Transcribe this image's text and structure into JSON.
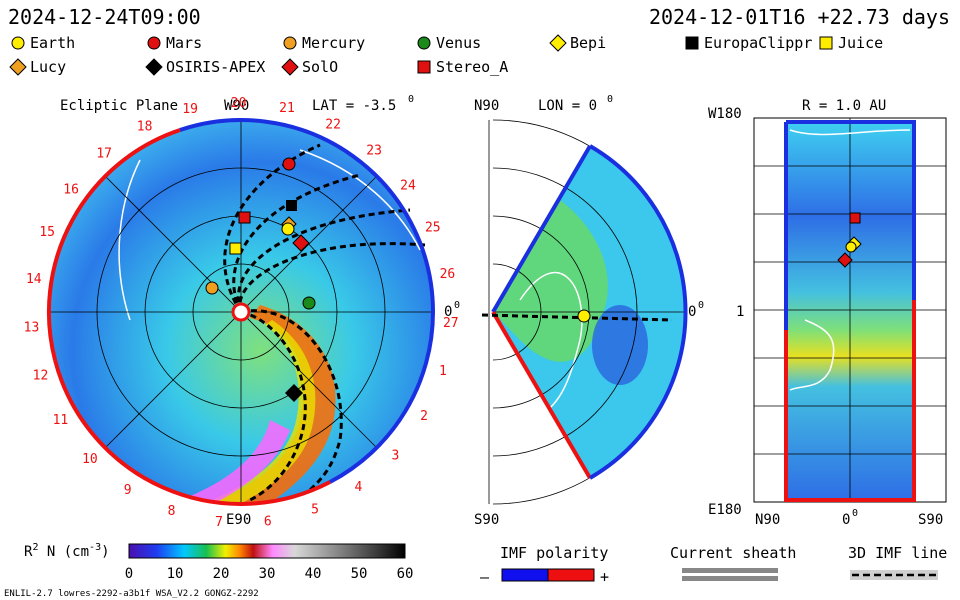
{
  "header": {
    "date_left": "2024-12-24T09:00",
    "date_right": "2024-12-01T16  +22.73 days"
  },
  "legend": [
    {
      "label": "Earth",
      "shape": "circle",
      "color": "#ffee00"
    },
    {
      "label": "Mars",
      "shape": "circle",
      "color": "#e01010"
    },
    {
      "label": "Mercury",
      "shape": "circle",
      "color": "#f0a020"
    },
    {
      "label": "Venus",
      "shape": "circle",
      "color": "#1a8a1a"
    },
    {
      "label": "Bepi",
      "shape": "diamond",
      "color": "#ffee00"
    },
    {
      "label": "EuropaClippr",
      "shape": "square",
      "color": "#000000"
    },
    {
      "label": "Juice",
      "shape": "square",
      "color": "#ffee00"
    },
    {
      "label": "Lucy",
      "shape": "diamond",
      "color": "#f0a020"
    },
    {
      "label": "OSIRIS-APEX",
      "shape": "diamond",
      "color": "#000000"
    },
    {
      "label": "SolO",
      "shape": "diamond",
      "color": "#e01010"
    },
    {
      "label": "Stereo_A",
      "shape": "square",
      "color": "#e01010"
    }
  ],
  "panels": {
    "ecliptic": {
      "title": "Ecliptic Plane",
      "lat": "LAT = -3.5",
      "lat_deg": "0",
      "top_label": "W90",
      "bottom_label": "E90",
      "right_label": "0",
      "right_deg": "0",
      "rotation_labels": [
        "19",
        "20",
        "21",
        "22",
        "23",
        "24",
        "25",
        "26",
        "27",
        "1",
        "2",
        "3",
        "4",
        "5",
        "6",
        "7",
        "8",
        "9",
        "10",
        "11",
        "12",
        "13",
        "14",
        "15",
        "16",
        "17",
        "18"
      ]
    },
    "meridional": {
      "top_label": "N90",
      "bottom_label": "S90",
      "lon": "LON = 0",
      "lon_deg": "0",
      "right_label": "0",
      "right_deg": "0"
    },
    "radial": {
      "title": "R = 1.0 AU",
      "top_left": "W180",
      "mid_left": "1",
      "bottom_left": "E180",
      "bottom_axis": [
        "N90",
        "0",
        "S90"
      ],
      "bottom_deg": "0"
    }
  },
  "colorbar": {
    "label": "R",
    "label_sup": "2",
    "label_rest": " N (cm",
    "label_sup2": "-3",
    "label_end": ")",
    "ticks": [
      "0",
      "10",
      "20",
      "30",
      "40",
      "50",
      "60"
    ]
  },
  "imf": {
    "title": "IMF polarity",
    "minus": "–",
    "plus": "+",
    "neg_color": "#1010ee",
    "pos_color": "#ee1010"
  },
  "sheath": {
    "title": "Current sheath"
  },
  "imf3d": {
    "title": "3D IMF line"
  },
  "footer": {
    "left": "ENLIL-2.7 lowres-2292-a3b1f WSA_V2.2 GONGZ-2292"
  },
  "chart_data": {
    "type": "heatmap",
    "title": "",
    "quantity": "R^2 N (cm^-3)",
    "range": [
      0,
      60
    ],
    "colorbar_ticks": [
      0,
      10,
      20,
      30,
      40,
      50,
      60
    ],
    "bodies_ecliptic": [
      {
        "name": "Earth",
        "angle_deg": 0,
        "r_au": 1.0
      },
      {
        "name": "Mars",
        "angle_deg": -75,
        "r_au": 1.35
      }
    ]
  }
}
